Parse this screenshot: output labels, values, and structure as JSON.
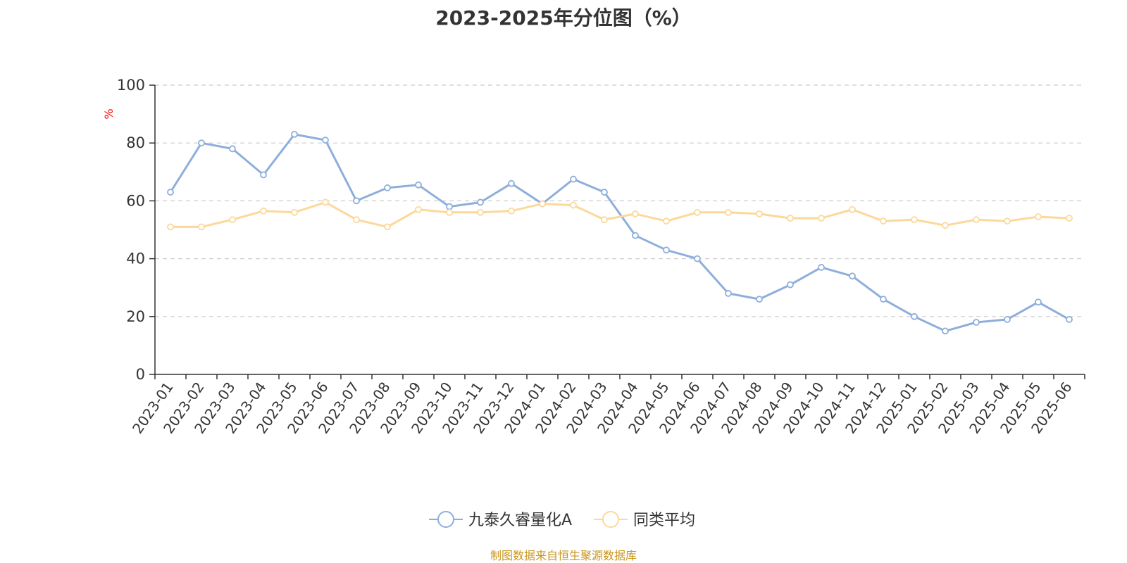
{
  "chart_data": {
    "type": "line",
    "title": "2023-2025年分位图（%）",
    "ylabel": "%",
    "ylim": [
      0,
      100
    ],
    "yticks": [
      0,
      20,
      40,
      60,
      80,
      100
    ],
    "grid": true,
    "legend_position": "bottom",
    "categories": [
      "2023-01",
      "2023-02",
      "2023-03",
      "2023-04",
      "2023-05",
      "2023-06",
      "2023-07",
      "2023-08",
      "2023-09",
      "2023-10",
      "2023-11",
      "2023-12",
      "2024-01",
      "2024-02",
      "2024-03",
      "2024-04",
      "2024-05",
      "2024-06",
      "2024-07",
      "2024-08",
      "2024-09",
      "2024-10",
      "2024-11",
      "2024-12",
      "2025-01",
      "2025-02",
      "2025-03",
      "2025-04",
      "2025-05",
      "2025-06"
    ],
    "series": [
      {
        "name": "九泰久睿量化A",
        "color": "#8eaedb",
        "values": [
          63,
          80,
          78,
          69,
          83,
          81,
          60,
          64.5,
          65.5,
          58,
          59.5,
          66,
          59,
          67.5,
          63,
          48,
          43,
          40,
          28,
          26,
          31,
          37,
          34,
          26,
          20,
          15,
          18,
          19,
          25,
          19
        ]
      },
      {
        "name": "同类平均",
        "color": "#fcd89a",
        "values": [
          51,
          51,
          53.5,
          56.5,
          56,
          59.5,
          53.5,
          51,
          57,
          56,
          56,
          56.5,
          59,
          58.5,
          53.5,
          55.5,
          53,
          56,
          56,
          55.5,
          54,
          54,
          57,
          53,
          53.5,
          51.5,
          53.5,
          53,
          54.5,
          54
        ]
      }
    ]
  },
  "footer": {
    "source": "制图数据来自恒生聚源数据库"
  }
}
